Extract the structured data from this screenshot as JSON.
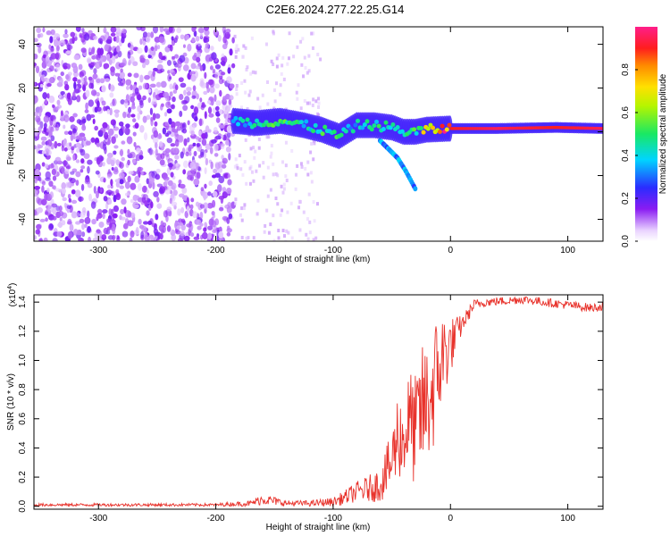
{
  "title": "C2E6.2024.277.22.25.G14",
  "colors": {
    "snr_line": "#e8322b",
    "spec_noise": "#7a1cf0",
    "axis": "#000000"
  },
  "chart_data": [
    {
      "id": "spectrogram",
      "type": "heatmap",
      "xlabel": "Height of straight line (km)",
      "ylabel": "Frequency (Hz)",
      "xlim": [
        -355,
        130
      ],
      "ylim": [
        -50,
        48
      ],
      "xticks": [
        -300,
        -200,
        -100,
        0,
        100
      ],
      "yticks": [
        -40,
        -20,
        0,
        20,
        40
      ],
      "colorbar": {
        "label": "Normalized spectral amplitude",
        "range": [
          0,
          1
        ],
        "ticks": [
          0.0,
          0.2,
          0.4,
          0.6,
          0.8
        ],
        "colormap": "rainbow (white-violet-blue-cyan-green-yellow-red-magenta)"
      },
      "regions": [
        {
          "x_range": [
            -355,
            -185
          ],
          "description_value": 0.15
        },
        {
          "x_range": [
            -185,
            -112
          ],
          "description_value": 0.03
        }
      ],
      "signal_track": [
        {
          "x": -185,
          "y": 5,
          "amp": 0.35
        },
        {
          "x": -165,
          "y": 4,
          "amp": 0.45
        },
        {
          "x": -145,
          "y": 5,
          "amp": 0.5
        },
        {
          "x": -125,
          "y": 3,
          "amp": 0.45
        },
        {
          "x": -110,
          "y": 1,
          "amp": 0.5
        },
        {
          "x": -95,
          "y": -2,
          "amp": 0.45
        },
        {
          "x": -80,
          "y": 3,
          "amp": 0.4
        },
        {
          "x": -65,
          "y": 3,
          "amp": 0.5
        },
        {
          "x": -50,
          "y": 2,
          "amp": 0.45
        },
        {
          "x": -40,
          "y": 0,
          "amp": 0.4
        },
        {
          "x": -30,
          "y": 0,
          "amp": 0.5
        },
        {
          "x": -20,
          "y": 1,
          "amp": 0.7
        },
        {
          "x": 0,
          "y": 1.5,
          "amp": 0.9
        },
        {
          "x": 40,
          "y": 1.5,
          "amp": 0.95
        },
        {
          "x": 90,
          "y": 2,
          "amp": 0.9
        },
        {
          "x": 130,
          "y": 1.5,
          "amp": 0.95
        }
      ],
      "tail_branch": [
        {
          "x": -60,
          "y": -4
        },
        {
          "x": -45,
          "y": -12
        },
        {
          "x": -38,
          "y": -18
        },
        {
          "x": -30,
          "y": -26
        }
      ]
    },
    {
      "id": "snr",
      "type": "line",
      "xlabel": "Height of straight line (km)",
      "ylabel": "SNR (10 * v/v)",
      "y_multiplier_label": "(x10",
      "y_multiplier_exp": "4",
      "xlim": [
        -355,
        130
      ],
      "ylim": [
        -0.02,
        1.45
      ],
      "xticks": [
        -300,
        -200,
        -100,
        0,
        100
      ],
      "yticks": [
        0.0,
        0.2,
        0.4,
        0.6,
        0.8,
        1.0,
        1.2,
        1.4
      ],
      "series": [
        {
          "x": [
            -355,
            -300,
            -250,
            -200,
            -170,
            -160,
            -140,
            -120,
            -100,
            -90,
            -80,
            -70,
            -60,
            -50,
            -45,
            -40,
            -35,
            -30,
            -25,
            -20,
            -15,
            -10,
            -5,
            0,
            10,
            20,
            30,
            50,
            60,
            80,
            100,
            120,
            130
          ],
          "y": [
            0.01,
            0.01,
            0.01,
            0.01,
            0.02,
            0.05,
            0.02,
            0.02,
            0.03,
            0.06,
            0.1,
            0.12,
            0.15,
            0.3,
            0.5,
            0.45,
            0.6,
            0.5,
            0.65,
            0.7,
            0.8,
            0.95,
            1.05,
            1.1,
            1.25,
            1.38,
            1.4,
            1.41,
            1.42,
            1.4,
            1.38,
            1.36,
            1.37
          ],
          "noise": [
            0.01,
            0.01,
            0.01,
            0.01,
            0.02,
            0.04,
            0.02,
            0.02,
            0.03,
            0.05,
            0.07,
            0.09,
            0.12,
            0.22,
            0.3,
            0.3,
            0.35,
            0.4,
            0.45,
            0.45,
            0.45,
            0.4,
            0.3,
            0.2,
            0.06,
            0.04,
            0.03,
            0.03,
            0.03,
            0.03,
            0.03,
            0.03,
            0.03
          ]
        }
      ]
    }
  ]
}
